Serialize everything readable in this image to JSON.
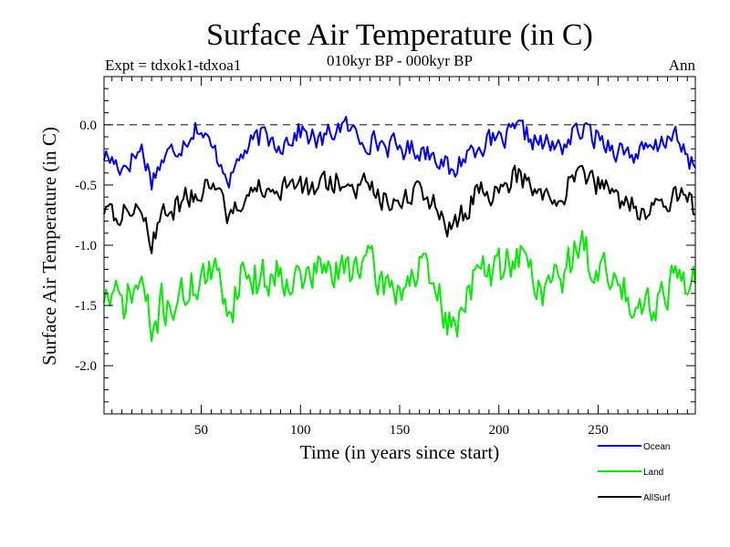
{
  "chart_data": {
    "type": "line",
    "title": "Surface Air Temperature (in C)",
    "subtitle": "010kyr BP - 000kyr BP",
    "experiment": "Expt = tdxok1-tdxoa1",
    "season": "Ann",
    "xlabel": "Time (in years since start)",
    "ylabel": "Surface Air Temperature (in C)",
    "xlim": [
      1,
      299
    ],
    "ylim": [
      -2.4,
      0.4
    ],
    "x_ticks": [
      50,
      100,
      150,
      200,
      250
    ],
    "y_ticks": [
      0.0,
      -0.5,
      -1.0,
      -1.5,
      -2.0
    ],
    "y_tick_labels": [
      "0.0",
      "-0.5",
      "-1.0",
      "-1.5",
      "-2.0"
    ],
    "reference_line": 0.0,
    "series": [
      {
        "name": "Ocean",
        "color": "#0000ff",
        "keypoints": [
          [
            1,
            -0.25
          ],
          [
            10,
            -0.35
          ],
          [
            20,
            -0.2
          ],
          [
            25,
            -0.45
          ],
          [
            30,
            -0.3
          ],
          [
            40,
            -0.15
          ],
          [
            48,
            0.0
          ],
          [
            55,
            -0.2
          ],
          [
            60,
            -0.3
          ],
          [
            65,
            -0.45
          ],
          [
            70,
            -0.25
          ],
          [
            80,
            -0.1
          ],
          [
            90,
            -0.15
          ],
          [
            100,
            -0.05
          ],
          [
            110,
            -0.15
          ],
          [
            120,
            0.0
          ],
          [
            130,
            -0.1
          ],
          [
            140,
            -0.15
          ],
          [
            150,
            -0.2
          ],
          [
            160,
            -0.2
          ],
          [
            170,
            -0.25
          ],
          [
            177,
            -0.45
          ],
          [
            180,
            -0.3
          ],
          [
            190,
            -0.15
          ],
          [
            200,
            -0.15
          ],
          [
            210,
            -0.05
          ],
          [
            220,
            -0.15
          ],
          [
            230,
            -0.2
          ],
          [
            240,
            -0.05
          ],
          [
            250,
            -0.1
          ],
          [
            260,
            -0.2
          ],
          [
            270,
            -0.25
          ],
          [
            280,
            -0.2
          ],
          [
            287,
            -0.05
          ],
          [
            295,
            -0.3
          ],
          [
            299,
            -0.33
          ]
        ],
        "noise": 0.09
      },
      {
        "name": "Land",
        "color": "#00ee00",
        "keypoints": [
          [
            1,
            -1.4
          ],
          [
            10,
            -1.5
          ],
          [
            20,
            -1.3
          ],
          [
            25,
            -1.75
          ],
          [
            30,
            -1.5
          ],
          [
            40,
            -1.45
          ],
          [
            50,
            -1.25
          ],
          [
            60,
            -1.3
          ],
          [
            65,
            -1.55
          ],
          [
            70,
            -1.2
          ],
          [
            80,
            -1.3
          ],
          [
            90,
            -1.2
          ],
          [
            100,
            -1.3
          ],
          [
            110,
            -1.2
          ],
          [
            120,
            -1.25
          ],
          [
            130,
            -1.1
          ],
          [
            140,
            -1.3
          ],
          [
            150,
            -1.35
          ],
          [
            160,
            -1.2
          ],
          [
            170,
            -1.45
          ],
          [
            177,
            -1.75
          ],
          [
            185,
            -1.3
          ],
          [
            190,
            -1.25
          ],
          [
            200,
            -1.2
          ],
          [
            210,
            -1.05
          ],
          [
            220,
            -1.35
          ],
          [
            230,
            -1.3
          ],
          [
            240,
            -1.0
          ],
          [
            250,
            -1.2
          ],
          [
            260,
            -1.35
          ],
          [
            270,
            -1.45
          ],
          [
            280,
            -1.45
          ],
          [
            290,
            -1.2
          ],
          [
            299,
            -1.35
          ]
        ],
        "noise": 0.16
      },
      {
        "name": "AllSurf",
        "color": "#000000",
        "keypoints": [
          [
            1,
            -0.7
          ],
          [
            10,
            -0.75
          ],
          [
            20,
            -0.65
          ],
          [
            25,
            -0.95
          ],
          [
            30,
            -0.75
          ],
          [
            40,
            -0.65
          ],
          [
            50,
            -0.5
          ],
          [
            60,
            -0.65
          ],
          [
            65,
            -0.8
          ],
          [
            70,
            -0.6
          ],
          [
            80,
            -0.55
          ],
          [
            90,
            -0.55
          ],
          [
            100,
            -0.5
          ],
          [
            110,
            -0.55
          ],
          [
            120,
            -0.45
          ],
          [
            130,
            -0.5
          ],
          [
            140,
            -0.6
          ],
          [
            150,
            -0.6
          ],
          [
            160,
            -0.55
          ],
          [
            170,
            -0.7
          ],
          [
            177,
            -0.9
          ],
          [
            185,
            -0.65
          ],
          [
            190,
            -0.55
          ],
          [
            200,
            -0.55
          ],
          [
            210,
            -0.4
          ],
          [
            220,
            -0.6
          ],
          [
            230,
            -0.6
          ],
          [
            240,
            -0.4
          ],
          [
            250,
            -0.5
          ],
          [
            260,
            -0.6
          ],
          [
            270,
            -0.7
          ],
          [
            280,
            -0.7
          ],
          [
            290,
            -0.55
          ],
          [
            299,
            -0.7
          ]
        ],
        "noise": 0.1
      }
    ],
    "legend_position": "bottom-right"
  }
}
